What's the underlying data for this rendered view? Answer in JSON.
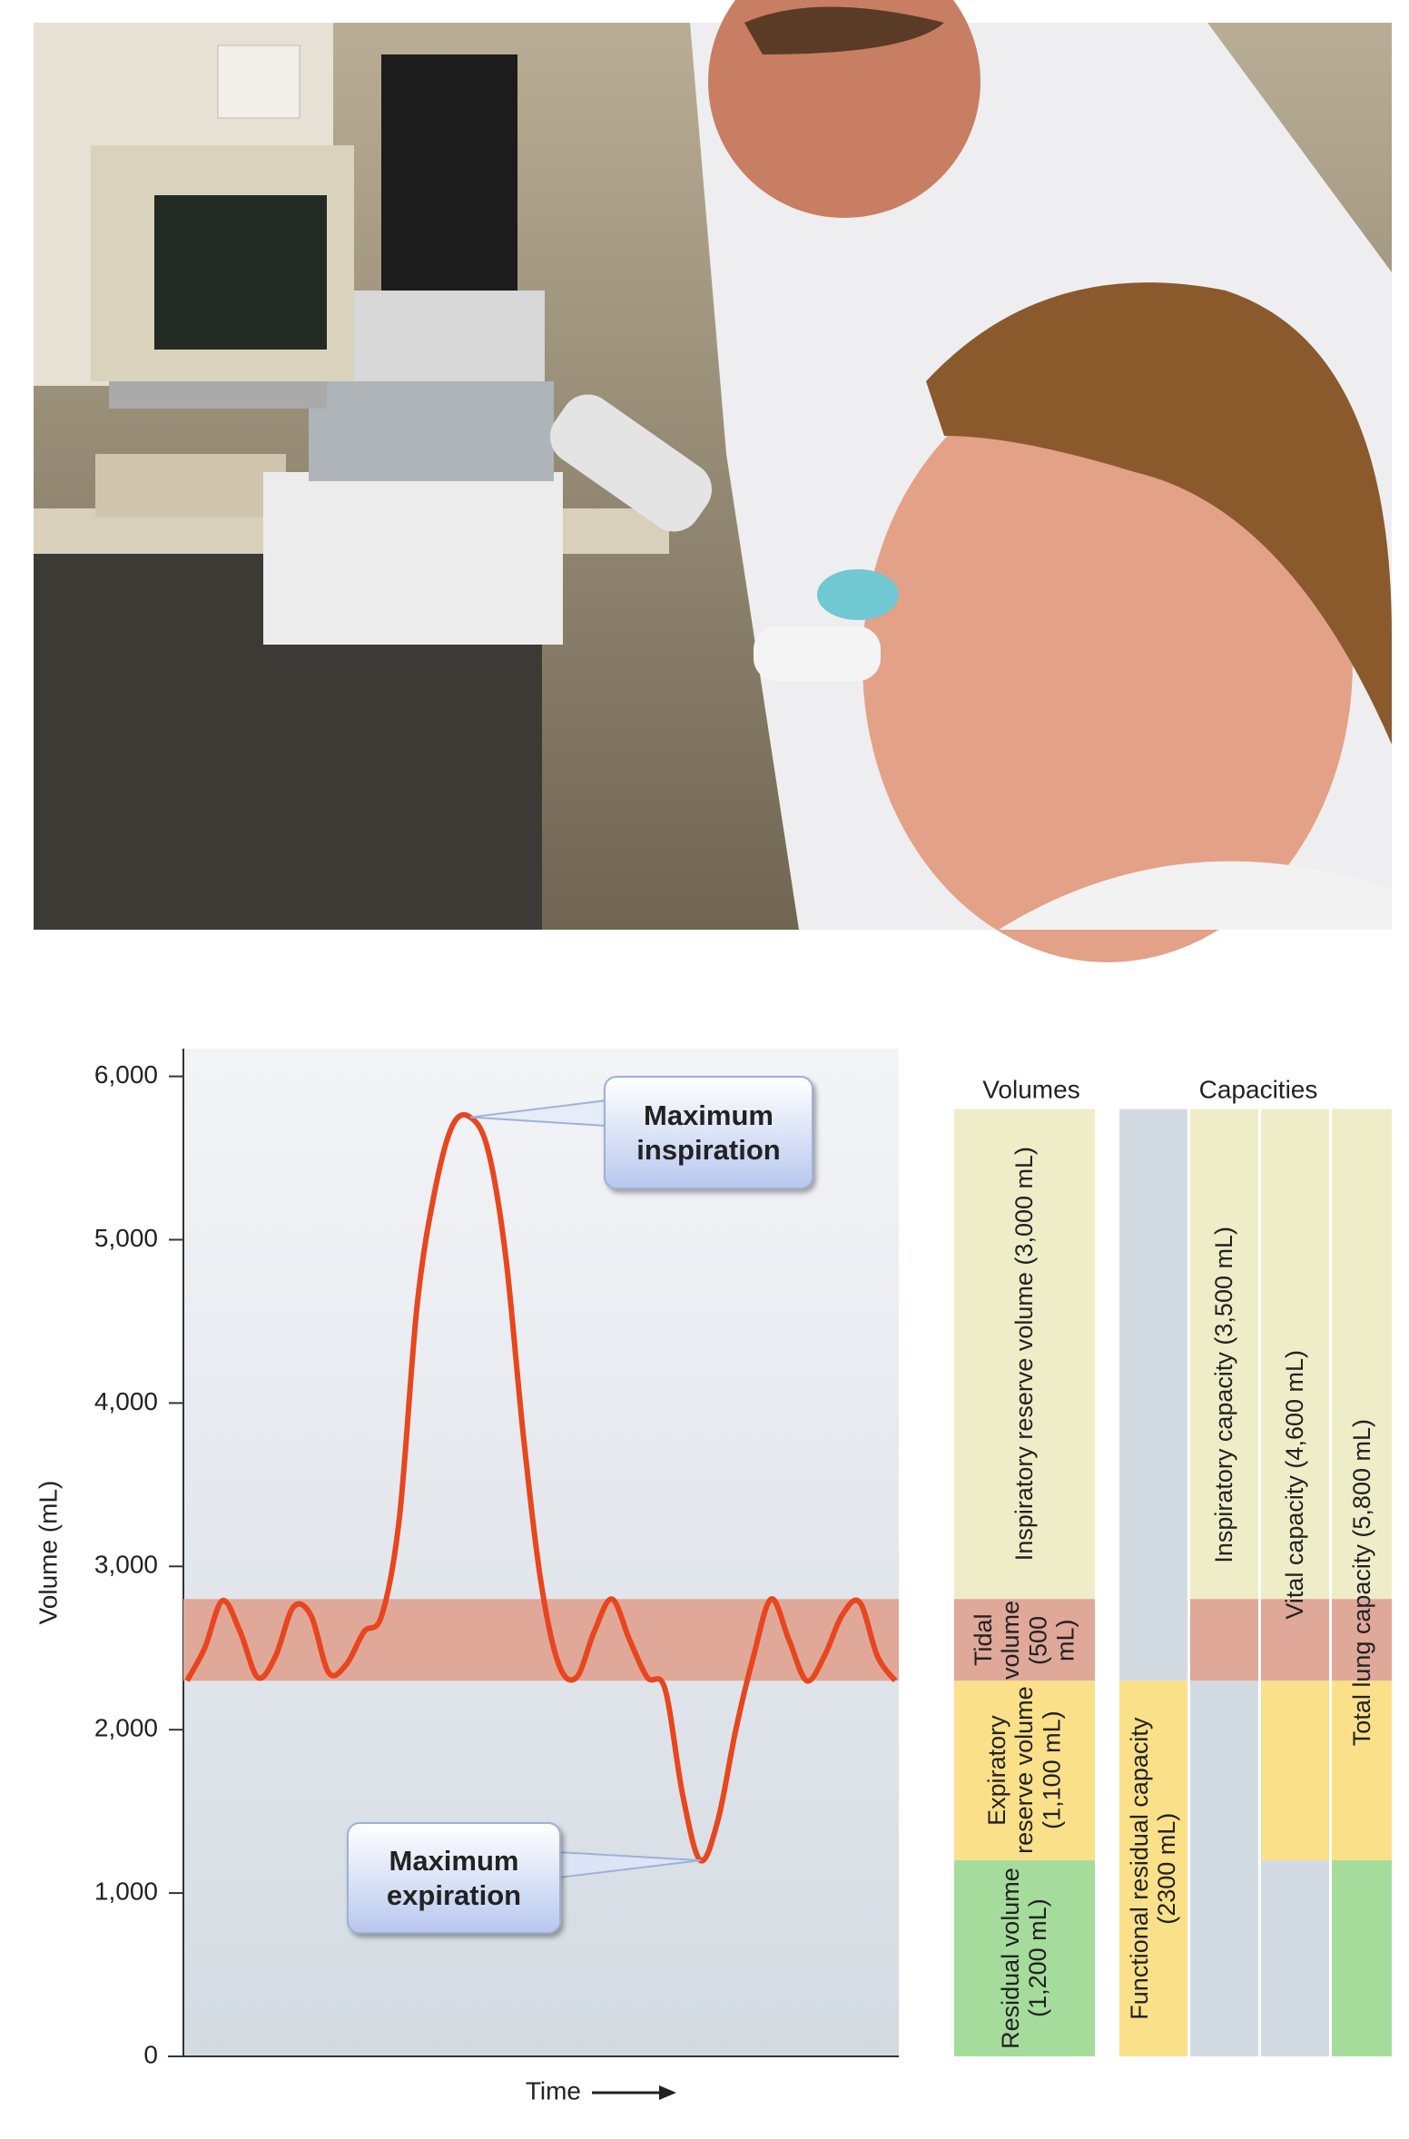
{
  "chart_data": {
    "type": "line",
    "ylabel": "Volume (mL)",
    "xlabel": "Time",
    "ylim": [
      0,
      6170
    ],
    "yticks": [
      0,
      {
        "value": 1000,
        "label": "1,000"
      },
      {
        "value": 2000,
        "label": "2,000"
      },
      {
        "value": 3000,
        "label": "3,000"
      },
      {
        "value": 4000,
        "label": "4,000"
      },
      {
        "value": 5000,
        "label": "5,000"
      },
      {
        "value": 6000,
        "label": "6,000"
      }
    ],
    "categories": [
      null,
      null,
      null,
      null,
      null,
      null,
      null,
      null,
      null,
      null,
      null,
      null,
      null,
      null,
      null,
      null,
      null,
      null,
      null,
      null,
      null,
      null,
      null,
      null,
      null,
      null,
      null,
      null,
      null,
      null,
      null,
      null,
      null,
      null,
      null,
      null,
      null,
      null,
      null,
      null,
      null
    ],
    "series": [
      {
        "color": "#e8461e",
        "values": [
          2300,
          2500,
          2790,
          2600,
          2320,
          2450,
          2750,
          2700,
          2350,
          2400,
          2600,
          2700,
          3300,
          4600,
          5300,
          5700,
          5750,
          5550,
          4900,
          3800,
          2900,
          2400,
          2320,
          2600,
          2800,
          2550,
          2320,
          2250,
          1600,
          1200,
          1450,
          2000,
          2450,
          2800,
          2550,
          2300,
          2450,
          2700,
          2780,
          2450,
          2300
        ]
      }
    ],
    "annotations": [
      {
        "text": "Maximum inspiration"
      },
      {
        "text": "Maximum expiration"
      }
    ],
    "volumes_title": "Volumes",
    "volumes": [
      {
        "label": "Inspiratory reserve volume (3,000 mL)",
        "lower": 2800,
        "upper": 5800,
        "color": "#efedc8"
      },
      {
        "label": "Tidal volume (500 mL)",
        "lower": 2300,
        "upper": 2800,
        "color": "#e0a898"
      },
      {
        "label": "Expiratory reserve volume (1,100 mL)",
        "lower": 1200,
        "upper": 2300,
        "color": "#fbe08a"
      },
      {
        "label": "Residual volume (1,200 mL)",
        "lower": 0,
        "upper": 1200,
        "color": "#a5dc9c"
      }
    ],
    "capacities_title": "Capacities",
    "capacities": [
      {
        "label": "Functional residual capacity (2300 mL)",
        "lower": 0,
        "upper": 2300,
        "color": "#fbe08a"
      },
      {
        "label": "Inspiratory capacity (3,500 mL)",
        "lower": 2300,
        "upper": 5800
      },
      {
        "label": "Vital capacity (4,600 mL)",
        "lower": 1200,
        "upper": 5800
      },
      {
        "label": "Total lung capacity (5,800 mL)",
        "lower": 0,
        "upper": 5800
      }
    ]
  }
}
